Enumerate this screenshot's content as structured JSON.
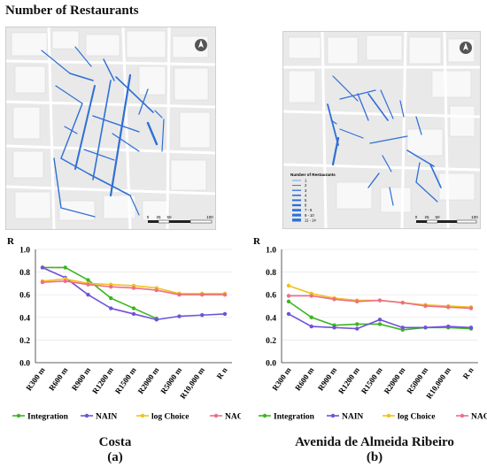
{
  "title": "Number of Restaurants",
  "maps": [
    {
      "name": "Costa",
      "scale_labels": [
        "0",
        "25",
        "50",
        "100"
      ]
    },
    {
      "name": "Avenida de Almeida Ribeiro",
      "legend": {
        "title": "Number of Restaurants",
        "items": [
          "1",
          "2",
          "3",
          "4",
          "5",
          "6",
          "7 - 8",
          "9 - 10",
          "11 - 14"
        ]
      },
      "scale_labels": [
        "0",
        "25",
        "50",
        "100"
      ]
    }
  ],
  "chart_data": [
    {
      "type": "line",
      "ylabel": "R",
      "ylim": [
        0,
        1.0
      ],
      "yticks": [
        "0.0",
        "0.2",
        "0.4",
        "0.6",
        "0.8",
        "1.0"
      ],
      "categories": [
        "R300 m",
        "R600 m",
        "R900 m",
        "R1200 m",
        "R1500 m",
        "R2000 m",
        "R5000 m",
        "R10,000 m",
        "R n"
      ],
      "series": [
        {
          "name": "Integration",
          "color": "#3cb521",
          "values": [
            0.84,
            0.84,
            0.73,
            0.57,
            0.48,
            0.39,
            null,
            null,
            null
          ]
        },
        {
          "name": "NAIN",
          "color": "#6f52d9",
          "values": [
            0.84,
            0.75,
            0.6,
            0.48,
            0.43,
            0.38,
            0.41,
            0.42,
            0.43
          ]
        },
        {
          "name": "log Choice",
          "color": "#f2c21b",
          "values": [
            0.72,
            0.74,
            0.7,
            0.69,
            0.68,
            0.66,
            0.61,
            0.61,
            0.61
          ]
        },
        {
          "name": "NACH",
          "color": "#ec6f87",
          "values": [
            0.71,
            0.72,
            0.69,
            0.67,
            0.66,
            0.64,
            0.6,
            0.6,
            0.6
          ]
        }
      ],
      "legend": "bottom",
      "caption": "Costa",
      "label": "(a)"
    },
    {
      "type": "line",
      "ylabel": "R",
      "ylim": [
        0,
        1.0
      ],
      "yticks": [
        "0.0",
        "0.2",
        "0.4",
        "0.6",
        "0.8",
        "1.0"
      ],
      "categories": [
        "R300 m",
        "R600 m",
        "R900 m",
        "R1200 m",
        "R1500 m",
        "R2000 m",
        "R5000 m",
        "R10,000 m",
        "R n"
      ],
      "series": [
        {
          "name": "Integration",
          "color": "#3cb521",
          "values": [
            0.54,
            0.4,
            0.33,
            0.34,
            0.34,
            0.29,
            0.31,
            0.31,
            0.3
          ]
        },
        {
          "name": "NAIN",
          "color": "#6f52d9",
          "values": [
            0.43,
            0.32,
            0.31,
            0.3,
            0.38,
            0.31,
            0.31,
            0.32,
            0.31
          ]
        },
        {
          "name": "log Choice",
          "color": "#f2c21b",
          "values": [
            0.68,
            0.61,
            0.57,
            0.55,
            0.55,
            0.53,
            0.51,
            0.5,
            0.49
          ]
        },
        {
          "name": "NACH",
          "color": "#ec6f87",
          "values": [
            0.59,
            0.59,
            0.56,
            0.54,
            0.55,
            0.53,
            0.5,
            0.49,
            0.48
          ]
        }
      ],
      "legend": "bottom",
      "caption": "Avenida de Almeida Ribeiro",
      "label": "(b)"
    }
  ]
}
